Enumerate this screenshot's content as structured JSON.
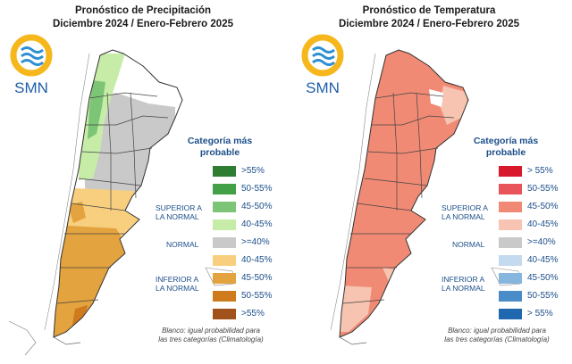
{
  "maps": [
    {
      "title_line1": "Pronóstico de Precipitación",
      "title_line2": "Diciembre 2024 / Enero-Febrero 2025",
      "logo_text": "SMN",
      "legend_title_line1": "Categoría más",
      "legend_title_line2": "probable",
      "legend_items": [
        {
          "label": ">55%",
          "color": "#2e7d32"
        },
        {
          "label": "50-55%",
          "color": "#43a047"
        },
        {
          "label": "45-50%",
          "color": "#7cc576"
        },
        {
          "label": "40-45%",
          "color": "#c6eca8"
        },
        {
          "label": ">=40%",
          "color": "#c9c9c9"
        },
        {
          "label": "40-45%",
          "color": "#f8cf7e"
        },
        {
          "label": "45-50%",
          "color": "#e3a33f"
        },
        {
          "label": "50-55%",
          "color": "#d07a1e"
        },
        {
          "label": ">55%",
          "color": "#a0521a"
        }
      ],
      "category_superior_1": "SUPERIOR A",
      "category_superior_2": "LA NORMAL",
      "category_normal": "NORMAL",
      "category_inferior_1": "INFERIOR A",
      "category_inferior_2": "LA NORMAL",
      "note_line1": "Blanco: igual probabilidad para",
      "note_line2": "las tres categorías (Climatología)"
    },
    {
      "title_line1": "Pronóstico de Temperatura",
      "title_line2": "Diciembre 2024 / Enero-Febrero 2025",
      "logo_text": "SMN",
      "legend_title_line1": "Categoría más",
      "legend_title_line2": "probable",
      "legend_items": [
        {
          "label": "> 55%",
          "color": "#d7192b"
        },
        {
          "label": "50-55%",
          "color": "#e8545a"
        },
        {
          "label": "45-50%",
          "color": "#f08a74"
        },
        {
          "label": "40-45%",
          "color": "#f6c4b0"
        },
        {
          "label": ">=40%",
          "color": "#c9c9c9"
        },
        {
          "label": "40-45%",
          "color": "#c4daee"
        },
        {
          "label": "45-50%",
          "color": "#86b6de"
        },
        {
          "label": "50-55%",
          "color": "#4a8cc8"
        },
        {
          "label": "> 55%",
          "color": "#1f68b0"
        }
      ],
      "category_superior_1": "SUPERIOR A",
      "category_superior_2": "LA NORMAL",
      "category_normal": "NORMAL",
      "category_inferior_1": "INFERIOR A",
      "category_inferior_2": "LA NORMAL",
      "note_line1": "Blanco: igual probabilidad para",
      "note_line2": "las tres categorías (Climatología)"
    }
  ]
}
